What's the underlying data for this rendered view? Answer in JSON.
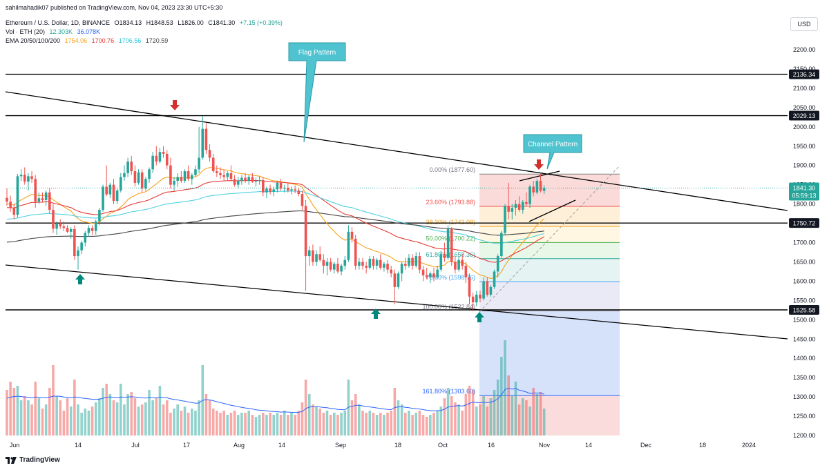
{
  "header": {
    "published": "sahilmahadik07 published on TradingView.com, Nov 04, 2023 23:30 UTC+5:30",
    "symbol": "Ethereum / U.S. Dollar, 1D, BINANCE",
    "ohlc": {
      "o": "O1834.13",
      "h": "H1848.53",
      "l": "L1826.00",
      "c": "C1841.30",
      "chg": "+7.15 (+0.39%)"
    },
    "vol_label": "Vol · ETH (20)",
    "vol_values": [
      "12.303K",
      "36.078K"
    ],
    "ema_label": "EMA 20/50/100/200",
    "ema_values": [
      "1754.06",
      "1700.76",
      "1706.56",
      "1720.59"
    ]
  },
  "currency_button": "USD",
  "footer_brand": "TradingView",
  "colors": {
    "up": "#26a69a",
    "down": "#ef5350",
    "ema20": "#f7a21b",
    "ema50": "#e53935",
    "ema100": "#4dd0e1",
    "ema200": "#424242",
    "accent": "#2962ff"
  },
  "chart_data": {
    "type": "candlestick",
    "price_range": [
      1200,
      2250
    ],
    "price_ticks": [
      "2200.00",
      "2150.00",
      "2100.00",
      "2050.00",
      "2000.00",
      "1950.00",
      "1900.00",
      "1850.00",
      "1800.00",
      "1750.00",
      "1700.00",
      "1650.00",
      "1600.00",
      "1550.00",
      "1500.00",
      "1450.00",
      "1400.00",
      "1350.00",
      "1300.00",
      "1250.00",
      "1200.00"
    ],
    "date_ticks": [
      "Jun",
      "14",
      "Jul",
      "17",
      "Aug",
      "14",
      "Sep",
      "18",
      "Oct",
      "16",
      "Nov",
      "14",
      "Dec",
      "18",
      "2024"
    ],
    "horizontal_levels": [
      {
        "price": 2136.34,
        "label": "2136.34"
      },
      {
        "price": 2029.13,
        "label": "2029.13"
      },
      {
        "price": 1750.72,
        "label": "1750.72"
      },
      {
        "price": 1525.58,
        "label": "1525.58"
      }
    ],
    "current_price": {
      "value": 1841.3,
      "label": "1841.30",
      "countdown": "05:59:13"
    },
    "fibonacci": [
      {
        "level": "0.00%",
        "price": 1877.6,
        "label": "0.00% (1877.60)"
      },
      {
        "level": "23.60%",
        "price": 1793.88,
        "label": "23.60% (1793.88)"
      },
      {
        "level": "38.20%",
        "price": 1742.08,
        "label": "38.20% (1742.08)"
      },
      {
        "level": "50.00%",
        "price": 1700.22,
        "label": "50.00% (1700.22)"
      },
      {
        "level": "61.80%",
        "price": 1658.36,
        "label": "61.80% (1658.36)"
      },
      {
        "level": "78.60%",
        "price": 1598.76,
        "label": "78.60% (1598.76)"
      },
      {
        "level": "100.00%",
        "price": 1522.84,
        "label": "100.00% (1522.84)"
      },
      {
        "level": "161.80%",
        "price": 1303.6,
        "label": "161.80% (1303.60)"
      }
    ],
    "annotations": [
      "Flag Pattern",
      "Channel Pattern"
    ],
    "candles": [
      [
        1816,
        1840,
        1795,
        1806
      ],
      [
        1806,
        1822,
        1780,
        1790
      ],
      [
        1790,
        1800,
        1760,
        1772
      ],
      [
        1772,
        1878,
        1765,
        1872
      ],
      [
        1872,
        1890,
        1860,
        1876
      ],
      [
        1876,
        1895,
        1850,
        1858
      ],
      [
        1858,
        1880,
        1835,
        1872
      ],
      [
        1872,
        1885,
        1855,
        1865
      ],
      [
        1865,
        1875,
        1790,
        1806
      ],
      [
        1806,
        1830,
        1800,
        1815
      ],
      [
        1815,
        1830,
        1805,
        1810
      ],
      [
        1810,
        1835,
        1795,
        1830
      ],
      [
        1830,
        1840,
        1775,
        1785
      ],
      [
        1785,
        1800,
        1725,
        1736
      ],
      [
        1736,
        1755,
        1720,
        1750
      ],
      [
        1750,
        1760,
        1735,
        1742
      ],
      [
        1742,
        1755,
        1730,
        1738
      ],
      [
        1738,
        1745,
        1725,
        1728
      ],
      [
        1728,
        1740,
        1710,
        1735
      ],
      [
        1735,
        1745,
        1655,
        1665
      ],
      [
        1665,
        1690,
        1630,
        1680
      ],
      [
        1680,
        1705,
        1670,
        1700
      ],
      [
        1700,
        1730,
        1690,
        1725
      ],
      [
        1725,
        1745,
        1715,
        1738
      ],
      [
        1738,
        1745,
        1720,
        1730
      ],
      [
        1730,
        1760,
        1720,
        1755
      ],
      [
        1755,
        1790,
        1745,
        1785
      ],
      [
        1785,
        1850,
        1780,
        1845
      ],
      [
        1845,
        1900,
        1820,
        1825
      ],
      [
        1825,
        1855,
        1815,
        1850
      ],
      [
        1850,
        1865,
        1800,
        1808
      ],
      [
        1808,
        1840,
        1800,
        1835
      ],
      [
        1835,
        1880,
        1830,
        1870
      ],
      [
        1870,
        1900,
        1860,
        1880
      ],
      [
        1880,
        1920,
        1870,
        1910
      ],
      [
        1910,
        1925,
        1875,
        1885
      ],
      [
        1885,
        1900,
        1845,
        1855
      ],
      [
        1855,
        1890,
        1850,
        1882
      ],
      [
        1882,
        1890,
        1830,
        1840
      ],
      [
        1840,
        1870,
        1835,
        1865
      ],
      [
        1865,
        1895,
        1855,
        1890
      ],
      [
        1890,
        1935,
        1880,
        1925
      ],
      [
        1925,
        1950,
        1900,
        1910
      ],
      [
        1910,
        1945,
        1905,
        1935
      ],
      [
        1935,
        1950,
        1920,
        1930
      ],
      [
        1930,
        1940,
        1890,
        1900
      ],
      [
        1900,
        1920,
        1840,
        1850
      ],
      [
        1850,
        1870,
        1835,
        1860
      ],
      [
        1860,
        1880,
        1845,
        1870
      ],
      [
        1870,
        1885,
        1855,
        1860
      ],
      [
        1860,
        1890,
        1855,
        1885
      ],
      [
        1885,
        1900,
        1860,
        1865
      ],
      [
        1865,
        1880,
        1850,
        1875
      ],
      [
        1875,
        1900,
        1870,
        1890
      ],
      [
        1890,
        2000,
        1880,
        1920
      ],
      [
        1920,
        2028,
        1915,
        1995
      ],
      [
        1995,
        2010,
        1930,
        1940
      ],
      [
        1940,
        1955,
        1910,
        1920
      ],
      [
        1920,
        1930,
        1880,
        1885
      ],
      [
        1885,
        1900,
        1870,
        1880
      ],
      [
        1880,
        1895,
        1865,
        1875
      ],
      [
        1875,
        1890,
        1860,
        1870
      ],
      [
        1870,
        1885,
        1860,
        1880
      ],
      [
        1880,
        1900,
        1860,
        1865
      ],
      [
        1865,
        1875,
        1845,
        1850
      ],
      [
        1850,
        1870,
        1840,
        1860
      ],
      [
        1860,
        1875,
        1850,
        1868
      ],
      [
        1868,
        1880,
        1855,
        1860
      ],
      [
        1860,
        1875,
        1850,
        1870
      ],
      [
        1870,
        1880,
        1855,
        1858
      ],
      [
        1858,
        1868,
        1845,
        1860
      ],
      [
        1860,
        1872,
        1850,
        1862
      ],
      [
        1862,
        1870,
        1820,
        1830
      ],
      [
        1830,
        1845,
        1815,
        1840
      ],
      [
        1840,
        1850,
        1825,
        1832
      ],
      [
        1832,
        1845,
        1820,
        1838
      ],
      [
        1838,
        1860,
        1830,
        1855
      ],
      [
        1855,
        1865,
        1835,
        1840
      ],
      [
        1840,
        1850,
        1830,
        1842
      ],
      [
        1842,
        1855,
        1830,
        1835
      ],
      [
        1835,
        1845,
        1825,
        1838
      ],
      [
        1838,
        1848,
        1828,
        1835
      ],
      [
        1835,
        1842,
        1820,
        1826
      ],
      [
        1826,
        1835,
        1785,
        1795
      ],
      [
        1795,
        1810,
        1575,
        1665
      ],
      [
        1665,
        1690,
        1640,
        1680
      ],
      [
        1680,
        1695,
        1640,
        1650
      ],
      [
        1650,
        1680,
        1640,
        1670
      ],
      [
        1670,
        1690,
        1650,
        1655
      ],
      [
        1655,
        1670,
        1620,
        1640
      ],
      [
        1640,
        1660,
        1615,
        1650
      ],
      [
        1650,
        1660,
        1625,
        1630
      ],
      [
        1630,
        1650,
        1620,
        1645
      ],
      [
        1645,
        1660,
        1620,
        1625
      ],
      [
        1625,
        1645,
        1615,
        1640
      ],
      [
        1640,
        1665,
        1630,
        1655
      ],
      [
        1655,
        1745,
        1650,
        1728
      ],
      [
        1728,
        1740,
        1700,
        1710
      ],
      [
        1710,
        1720,
        1630,
        1640
      ],
      [
        1640,
        1660,
        1630,
        1650
      ],
      [
        1650,
        1660,
        1630,
        1640
      ],
      [
        1640,
        1650,
        1620,
        1635
      ],
      [
        1635,
        1665,
        1630,
        1658
      ],
      [
        1658,
        1665,
        1630,
        1640
      ],
      [
        1640,
        1660,
        1630,
        1655
      ],
      [
        1655,
        1670,
        1630,
        1635
      ],
      [
        1635,
        1650,
        1625,
        1645
      ],
      [
        1645,
        1655,
        1620,
        1630
      ],
      [
        1630,
        1640,
        1610,
        1620
      ],
      [
        1620,
        1630,
        1540,
        1585
      ],
      [
        1585,
        1625,
        1580,
        1620
      ],
      [
        1620,
        1650,
        1600,
        1645
      ],
      [
        1645,
        1660,
        1630,
        1640
      ],
      [
        1640,
        1670,
        1635,
        1660
      ],
      [
        1660,
        1670,
        1630,
        1640
      ],
      [
        1640,
        1675,
        1635,
        1665
      ],
      [
        1665,
        1675,
        1620,
        1630
      ],
      [
        1630,
        1640,
        1600,
        1615
      ],
      [
        1615,
        1635,
        1605,
        1610
      ],
      [
        1610,
        1625,
        1595,
        1620
      ],
      [
        1620,
        1635,
        1600,
        1610
      ],
      [
        1610,
        1640,
        1605,
        1630
      ],
      [
        1630,
        1680,
        1625,
        1670
      ],
      [
        1670,
        1700,
        1650,
        1660
      ],
      [
        1660,
        1745,
        1655,
        1735
      ],
      [
        1735,
        1740,
        1640,
        1650
      ],
      [
        1650,
        1665,
        1620,
        1630
      ],
      [
        1630,
        1665,
        1625,
        1655
      ],
      [
        1655,
        1670,
        1630,
        1640
      ],
      [
        1640,
        1650,
        1595,
        1610
      ],
      [
        1610,
        1620,
        1540,
        1560
      ],
      [
        1560,
        1570,
        1522,
        1545
      ],
      [
        1545,
        1575,
        1535,
        1565
      ],
      [
        1565,
        1575,
        1545,
        1555
      ],
      [
        1555,
        1610,
        1550,
        1600
      ],
      [
        1600,
        1610,
        1560,
        1565
      ],
      [
        1565,
        1590,
        1560,
        1585
      ],
      [
        1585,
        1630,
        1580,
        1625
      ],
      [
        1625,
        1670,
        1610,
        1665
      ],
      [
        1665,
        1730,
        1660,
        1725
      ],
      [
        1725,
        1800,
        1720,
        1795
      ],
      [
        1795,
        1855,
        1760,
        1780
      ],
      [
        1780,
        1800,
        1760,
        1790
      ],
      [
        1790,
        1810,
        1770,
        1800
      ],
      [
        1800,
        1820,
        1780,
        1785
      ],
      [
        1785,
        1810,
        1775,
        1805
      ],
      [
        1805,
        1830,
        1795,
        1800
      ],
      [
        1800,
        1850,
        1790,
        1845
      ],
      [
        1845,
        1860,
        1820,
        1830
      ],
      [
        1830,
        1865,
        1825,
        1860
      ],
      [
        1860,
        1878,
        1830,
        1834
      ],
      [
        1834,
        1849,
        1826,
        1841
      ]
    ],
    "volumes": [
      220,
      260,
      230,
      240,
      170,
      190,
      170,
      150,
      260,
      180,
      130,
      150,
      230,
      340,
      190,
      170,
      120,
      180,
      140,
      270,
      150,
      110,
      130,
      120,
      140,
      160,
      180,
      230,
      250,
      200,
      170,
      160,
      250,
      150,
      200,
      210,
      180,
      140,
      150,
      160,
      220,
      170,
      180,
      240,
      150,
      170,
      110,
      130,
      150,
      120,
      140,
      110,
      130,
      120,
      170,
      340,
      200,
      170,
      130,
      120,
      110,
      120,
      100,
      110,
      120,
      100,
      110,
      110,
      120,
      100,
      90,
      100,
      110,
      100,
      110,
      100,
      110,
      100,
      120,
      100,
      110,
      100,
      120,
      160,
      270,
      200,
      150,
      140,
      130,
      110,
      120,
      100,
      110,
      100,
      110,
      120,
      270,
      170,
      200,
      150,
      120,
      110,
      120,
      110,
      100,
      110,
      100,
      110,
      120,
      230,
      170,
      150,
      110,
      120,
      100,
      110,
      120,
      100,
      90,
      100,
      110,
      120,
      140,
      180,
      230,
      190,
      160,
      150,
      120,
      200,
      240,
      220,
      140,
      150,
      190,
      140,
      180,
      220,
      270,
      380,
      460,
      290,
      190,
      260,
      150,
      180,
      170,
      140,
      230,
      200,
      210,
      130
    ],
    "volume_ema": [
      180,
      185,
      188,
      190,
      188,
      186,
      185,
      183,
      186,
      185,
      183,
      182,
      185,
      190,
      190,
      189,
      186,
      185,
      183,
      186,
      185,
      181,
      179,
      177,
      175,
      174,
      175,
      180,
      185,
      186,
      185,
      183,
      186,
      185,
      186,
      187,
      186,
      184,
      182,
      181,
      184,
      182,
      182,
      186,
      183,
      182,
      177,
      174,
      172,
      168,
      166,
      162,
      159,
      156,
      157,
      170,
      173,
      172,
      168,
      163,
      159,
      155,
      150,
      146,
      143,
      139,
      136,
      133,
      131,
      128,
      124,
      122,
      121,
      119,
      117,
      116,
      115,
      113,
      114,
      113,
      112,
      111,
      112,
      116,
      130,
      137,
      139,
      139,
      138,
      135,
      134,
      131,
      129,
      126,
      125,
      124,
      137,
      140,
      146,
      146,
      143,
      140,
      138,
      136,
      133,
      131,
      128,
      126,
      125,
      135,
      138,
      139,
      136,
      134,
      131,
      129,
      128,
      125,
      122,
      120,
      119,
      120,
      121,
      127,
      137,
      141,
      143,
      144,
      142,
      147,
      155,
      161,
      159,
      158,
      161,
      159,
      161,
      167,
      177,
      197,
      222,
      228,
      224,
      227,
      219,
      215,
      210,
      203,
      205,
      205,
      206,
      199
    ]
  }
}
